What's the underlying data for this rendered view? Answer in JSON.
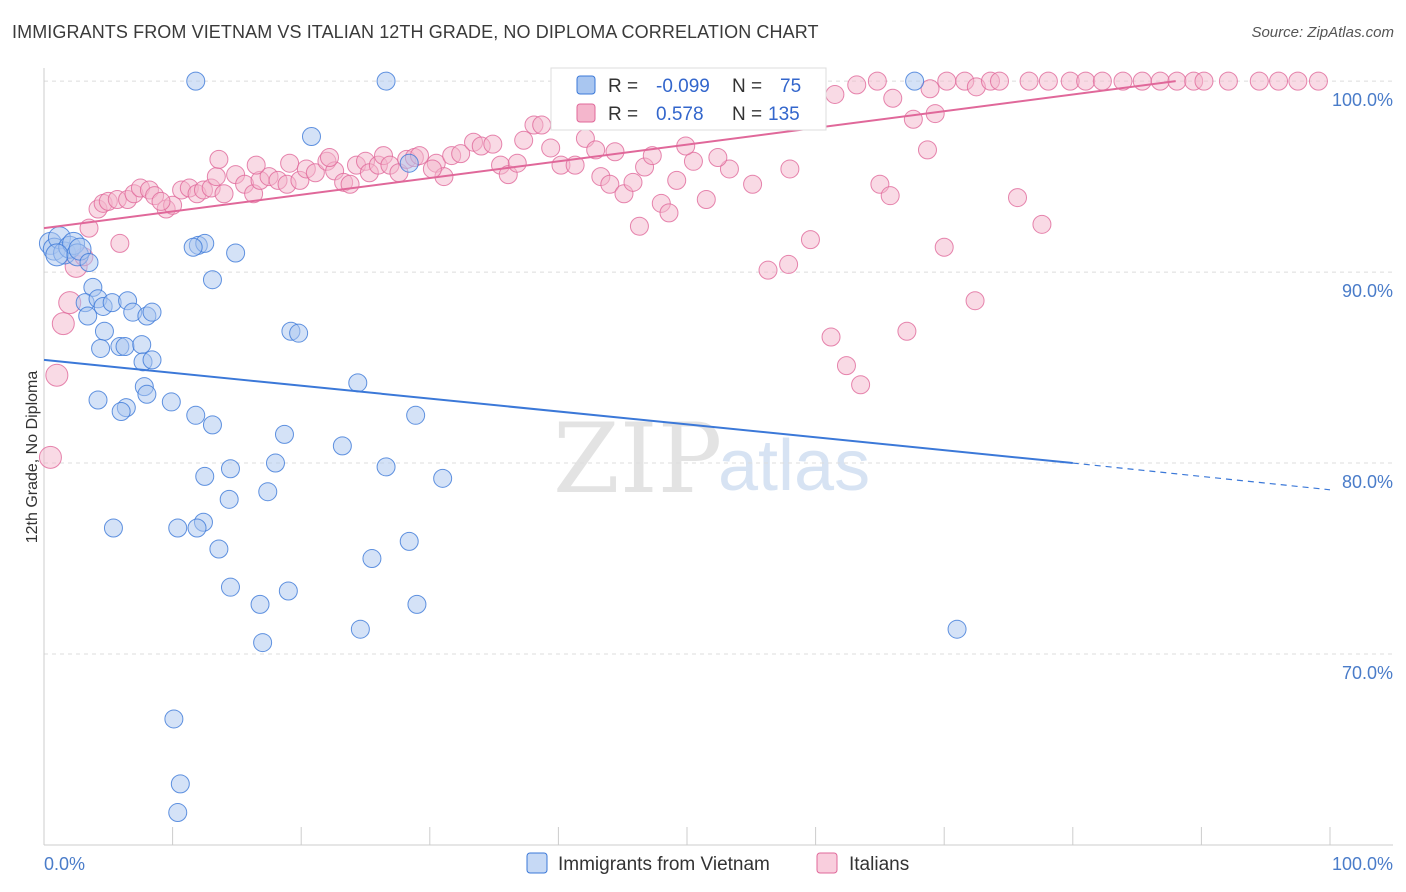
{
  "title": "IMMIGRANTS FROM VIETNAM VS ITALIAN 12TH GRADE, NO DIPLOMA CORRELATION CHART",
  "source": "Source: ZipAtlas.com",
  "watermark": {
    "zip": "ZIP",
    "atlas": "atlas"
  },
  "colors": {
    "blue": "#3b78d8",
    "blue_fill": "#a9c6f0",
    "pink": "#e0689a",
    "pink_fill": "#f4b6cc"
  },
  "chart_data": {
    "type": "scatter",
    "xlabel": "",
    "ylabel": "12th Grade, No Diploma",
    "xlim": [
      0,
      100
    ],
    "ylim": [
      60,
      101
    ],
    "x_tick_labels": {
      "left": "0.0%",
      "right": "100.0%"
    },
    "y_ticks": [
      {
        "value": 100,
        "label": "100.0%"
      },
      {
        "value": 90,
        "label": "90.0%"
      },
      {
        "value": 80,
        "label": "80.0%"
      },
      {
        "value": 70,
        "label": "70.0%"
      }
    ],
    "legend": {
      "r_label": "R =",
      "n_label": "N =",
      "entries": [
        {
          "r": "-0.099",
          "n": "75"
        },
        {
          "r": "0.578",
          "n": "135"
        }
      ]
    },
    "series": [
      {
        "name": "Immigrants from Vietnam",
        "trend": {
          "x0": 0,
          "y0": 85.4,
          "x1": 80,
          "y1": 80.0,
          "dash_to_x": 100,
          "dash_to_y": 78.6
        },
        "points": [
          [
            0.5,
            91.5
          ],
          [
            0.8,
            91.2
          ],
          [
            1.2,
            91.8
          ],
          [
            1.6,
            91.0
          ],
          [
            2.0,
            91.3
          ],
          [
            2.3,
            91.5
          ],
          [
            2.6,
            90.9
          ],
          [
            1.0,
            90.9
          ],
          [
            2.8,
            91.2
          ],
          [
            3.5,
            90.5
          ],
          [
            3.8,
            89.2
          ],
          [
            3.2,
            88.4
          ],
          [
            4.2,
            88.6
          ],
          [
            4.6,
            88.2
          ],
          [
            5.3,
            88.4
          ],
          [
            6.5,
            88.5
          ],
          [
            6.9,
            87.9
          ],
          [
            8.0,
            87.7
          ],
          [
            8.4,
            87.9
          ],
          [
            3.4,
            87.7
          ],
          [
            4.7,
            86.9
          ],
          [
            4.4,
            86.0
          ],
          [
            5.9,
            86.1
          ],
          [
            6.3,
            86.1
          ],
          [
            7.6,
            86.2
          ],
          [
            7.7,
            85.3
          ],
          [
            8.4,
            85.4
          ],
          [
            7.8,
            84.0
          ],
          [
            8.0,
            83.6
          ],
          [
            4.2,
            83.3
          ],
          [
            6.4,
            82.9
          ],
          [
            6.0,
            82.7
          ],
          [
            9.9,
            83.2
          ],
          [
            11.8,
            82.5
          ],
          [
            13.1,
            82.0
          ],
          [
            14.5,
            79.7
          ],
          [
            12.5,
            79.3
          ],
          [
            14.4,
            78.1
          ],
          [
            12.4,
            76.9
          ],
          [
            11.9,
            76.6
          ],
          [
            5.4,
            76.6
          ],
          [
            10.4,
            76.6
          ],
          [
            13.6,
            75.5
          ],
          [
            14.5,
            73.5
          ],
          [
            16.8,
            72.6
          ],
          [
            19.0,
            73.3
          ],
          [
            17.0,
            70.6
          ],
          [
            10.1,
            66.6
          ],
          [
            10.6,
            63.2
          ],
          [
            10.4,
            61.7
          ],
          [
            12.0,
            91.4
          ],
          [
            12.5,
            91.5
          ],
          [
            11.6,
            91.3
          ],
          [
            14.9,
            91.0
          ],
          [
            13.1,
            89.6
          ],
          [
            19.2,
            86.9
          ],
          [
            19.8,
            86.8
          ],
          [
            24.4,
            84.2
          ],
          [
            18.7,
            81.5
          ],
          [
            23.2,
            80.9
          ],
          [
            18.0,
            80.0
          ],
          [
            17.4,
            78.5
          ],
          [
            26.6,
            79.8
          ],
          [
            28.9,
            82.5
          ],
          [
            31.0,
            79.2
          ],
          [
            28.4,
            75.9
          ],
          [
            25.5,
            75.0
          ],
          [
            24.6,
            71.3
          ],
          [
            29.0,
            72.6
          ],
          [
            20.8,
            97.1
          ],
          [
            26.6,
            100.0
          ],
          [
            11.8,
            100.0
          ],
          [
            67.7,
            100.0
          ],
          [
            71.0,
            71.3
          ],
          [
            28.4,
            95.7
          ]
        ]
      },
      {
        "name": "Italians",
        "trend": {
          "x0": 0,
          "y0": 92.3,
          "x1": 88,
          "y1": 100.0
        },
        "points": [
          [
            0.5,
            80.3
          ],
          [
            1.0,
            84.6
          ],
          [
            1.5,
            87.3
          ],
          [
            2.0,
            88.4
          ],
          [
            2.5,
            90.3
          ],
          [
            3.1,
            90.8
          ],
          [
            3.5,
            92.3
          ],
          [
            4.2,
            93.3
          ],
          [
            4.6,
            93.6
          ],
          [
            5.0,
            93.7
          ],
          [
            5.7,
            93.8
          ],
          [
            6.5,
            93.8
          ],
          [
            7.0,
            94.1
          ],
          [
            7.5,
            94.4
          ],
          [
            8.2,
            94.3
          ],
          [
            8.6,
            94.0
          ],
          [
            9.5,
            93.3
          ],
          [
            10.0,
            93.5
          ],
          [
            10.7,
            94.3
          ],
          [
            11.3,
            94.4
          ],
          [
            11.9,
            94.1
          ],
          [
            12.4,
            94.3
          ],
          [
            13.0,
            94.4
          ],
          [
            13.4,
            95.0
          ],
          [
            14.0,
            94.1
          ],
          [
            14.9,
            95.1
          ],
          [
            15.6,
            94.6
          ],
          [
            16.3,
            94.1
          ],
          [
            16.8,
            94.8
          ],
          [
            17.5,
            95.0
          ],
          [
            18.2,
            94.8
          ],
          [
            18.9,
            94.6
          ],
          [
            19.1,
            95.7
          ],
          [
            19.9,
            94.8
          ],
          [
            20.4,
            95.4
          ],
          [
            21.1,
            95.2
          ],
          [
            22.0,
            95.8
          ],
          [
            22.6,
            95.3
          ],
          [
            23.3,
            94.7
          ],
          [
            23.8,
            94.6
          ],
          [
            24.3,
            95.6
          ],
          [
            25.0,
            95.8
          ],
          [
            25.3,
            95.2
          ],
          [
            26.0,
            95.6
          ],
          [
            26.4,
            96.1
          ],
          [
            26.9,
            95.6
          ],
          [
            27.6,
            95.2
          ],
          [
            28.2,
            95.9
          ],
          [
            28.8,
            96.0
          ],
          [
            29.2,
            96.1
          ],
          [
            30.5,
            95.7
          ],
          [
            31.1,
            95.0
          ],
          [
            31.7,
            96.1
          ],
          [
            32.4,
            96.2
          ],
          [
            33.4,
            96.8
          ],
          [
            34.0,
            96.6
          ],
          [
            34.9,
            96.7
          ],
          [
            35.5,
            95.6
          ],
          [
            36.1,
            95.1
          ],
          [
            36.8,
            95.7
          ],
          [
            37.3,
            96.9
          ],
          [
            38.1,
            97.7
          ],
          [
            38.7,
            97.7
          ],
          [
            39.4,
            96.5
          ],
          [
            40.2,
            95.6
          ],
          [
            41.3,
            95.6
          ],
          [
            42.1,
            97.0
          ],
          [
            42.9,
            96.4
          ],
          [
            43.3,
            95.0
          ],
          [
            44.0,
            94.6
          ],
          [
            45.1,
            94.1
          ],
          [
            45.8,
            94.7
          ],
          [
            46.7,
            95.5
          ],
          [
            47.3,
            96.1
          ],
          [
            48.0,
            93.6
          ],
          [
            48.6,
            93.1
          ],
          [
            49.2,
            94.8
          ],
          [
            50.5,
            95.8
          ],
          [
            51.5,
            93.8
          ],
          [
            53.3,
            95.4
          ],
          [
            55.1,
            94.6
          ],
          [
            56.3,
            90.1
          ],
          [
            57.9,
            90.4
          ],
          [
            59.6,
            91.7
          ],
          [
            61.2,
            86.6
          ],
          [
            62.4,
            85.1
          ],
          [
            63.5,
            84.1
          ],
          [
            65.0,
            94.6
          ],
          [
            65.8,
            94.0
          ],
          [
            67.1,
            86.9
          ],
          [
            68.7,
            96.4
          ],
          [
            70.0,
            91.3
          ],
          [
            72.4,
            88.5
          ],
          [
            75.7,
            93.9
          ],
          [
            77.6,
            92.5
          ],
          [
            60.0,
            100.0
          ],
          [
            61.5,
            99.3
          ],
          [
            63.2,
            99.8
          ],
          [
            64.8,
            100.0
          ],
          [
            66.0,
            99.1
          ],
          [
            68.9,
            99.6
          ],
          [
            70.2,
            100.0
          ],
          [
            71.6,
            100.0
          ],
          [
            72.5,
            99.7
          ],
          [
            73.6,
            100.0
          ],
          [
            74.3,
            100.0
          ],
          [
            76.6,
            100.0
          ],
          [
            78.1,
            100.0
          ],
          [
            79.8,
            100.0
          ],
          [
            81.0,
            100.0
          ],
          [
            82.3,
            100.0
          ],
          [
            83.9,
            100.0
          ],
          [
            85.4,
            100.0
          ],
          [
            86.8,
            100.0
          ],
          [
            88.1,
            100.0
          ],
          [
            89.4,
            100.0
          ],
          [
            90.2,
            100.0
          ],
          [
            92.1,
            100.0
          ],
          [
            94.5,
            100.0
          ],
          [
            96.0,
            100.0
          ],
          [
            97.5,
            100.0
          ],
          [
            99.1,
            100.0
          ],
          [
            30.2,
            95.4
          ],
          [
            44.4,
            96.3
          ],
          [
            46.3,
            92.4
          ],
          [
            58.0,
            95.4
          ],
          [
            22.2,
            96.0
          ],
          [
            16.5,
            95.6
          ],
          [
            13.6,
            95.9
          ],
          [
            9.1,
            93.7
          ],
          [
            5.9,
            91.5
          ],
          [
            49.9,
            96.6
          ],
          [
            52.4,
            96.0
          ],
          [
            67.6,
            98.0
          ],
          [
            69.3,
            98.3
          ]
        ]
      }
    ]
  }
}
